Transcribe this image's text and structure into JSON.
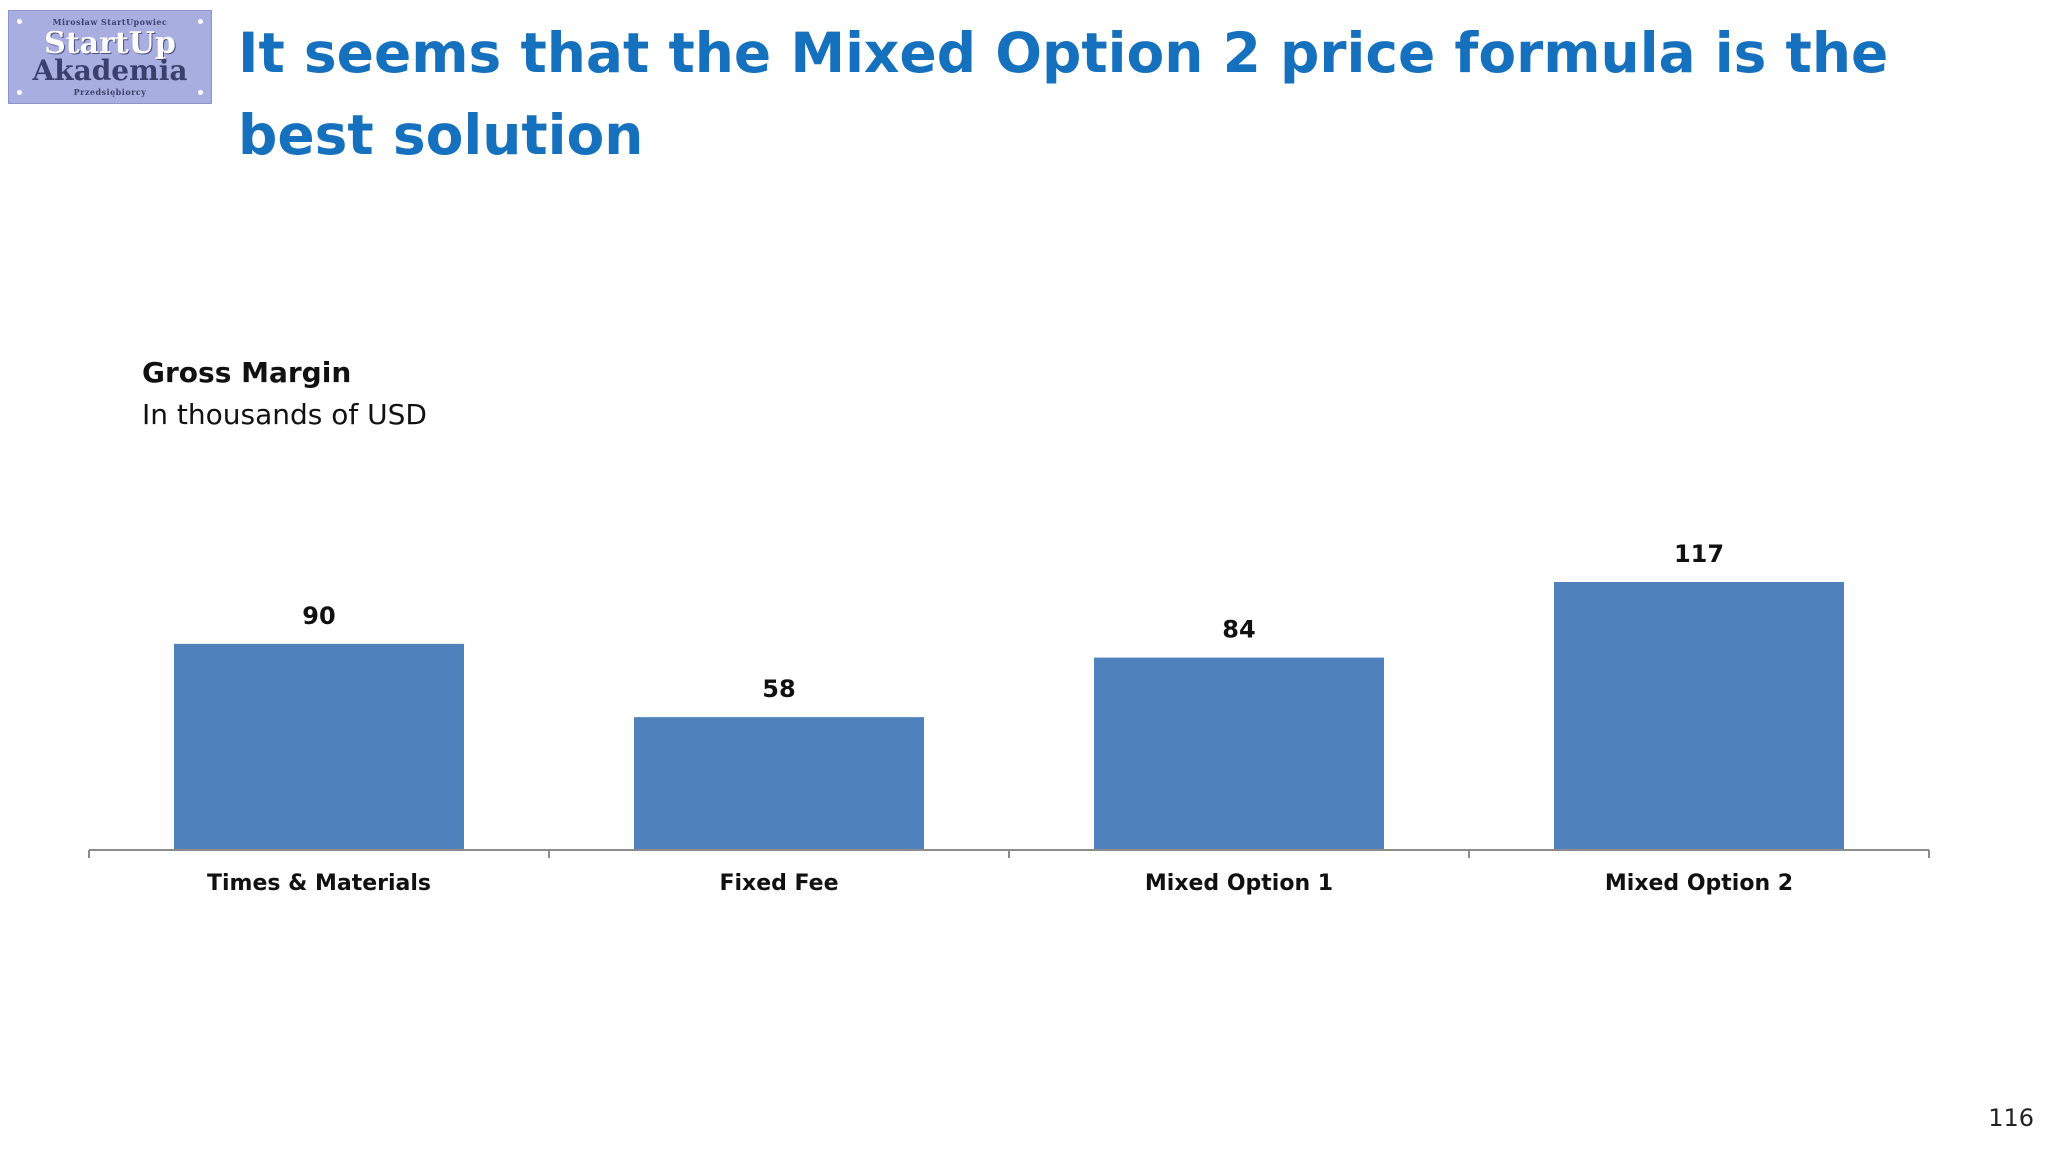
{
  "logo": {
    "top_text": "Mirosław StartUpowiec",
    "line1": "StartUp",
    "line2": "Akademia",
    "bottom_text": "Przedsiębiorcy"
  },
  "slide": {
    "title": "It seems that the Mixed Option 2 price formula is the best solution",
    "page_number": "116"
  },
  "chart_data": {
    "type": "bar",
    "title": "Gross Margin",
    "subtitle": "In thousands of USD",
    "categories": [
      "Times & Materials",
      "Fixed Fee",
      "Mixed Option 1",
      "Mixed Option 2"
    ],
    "values": [
      90,
      58,
      84,
      117
    ],
    "data_labels": [
      "90",
      "58",
      "84",
      "117"
    ],
    "ylim": [
      0,
      117
    ],
    "grid": false,
    "legend": "none",
    "bar_color": "#4f81bd",
    "axis_color": "#8c8c8c"
  }
}
